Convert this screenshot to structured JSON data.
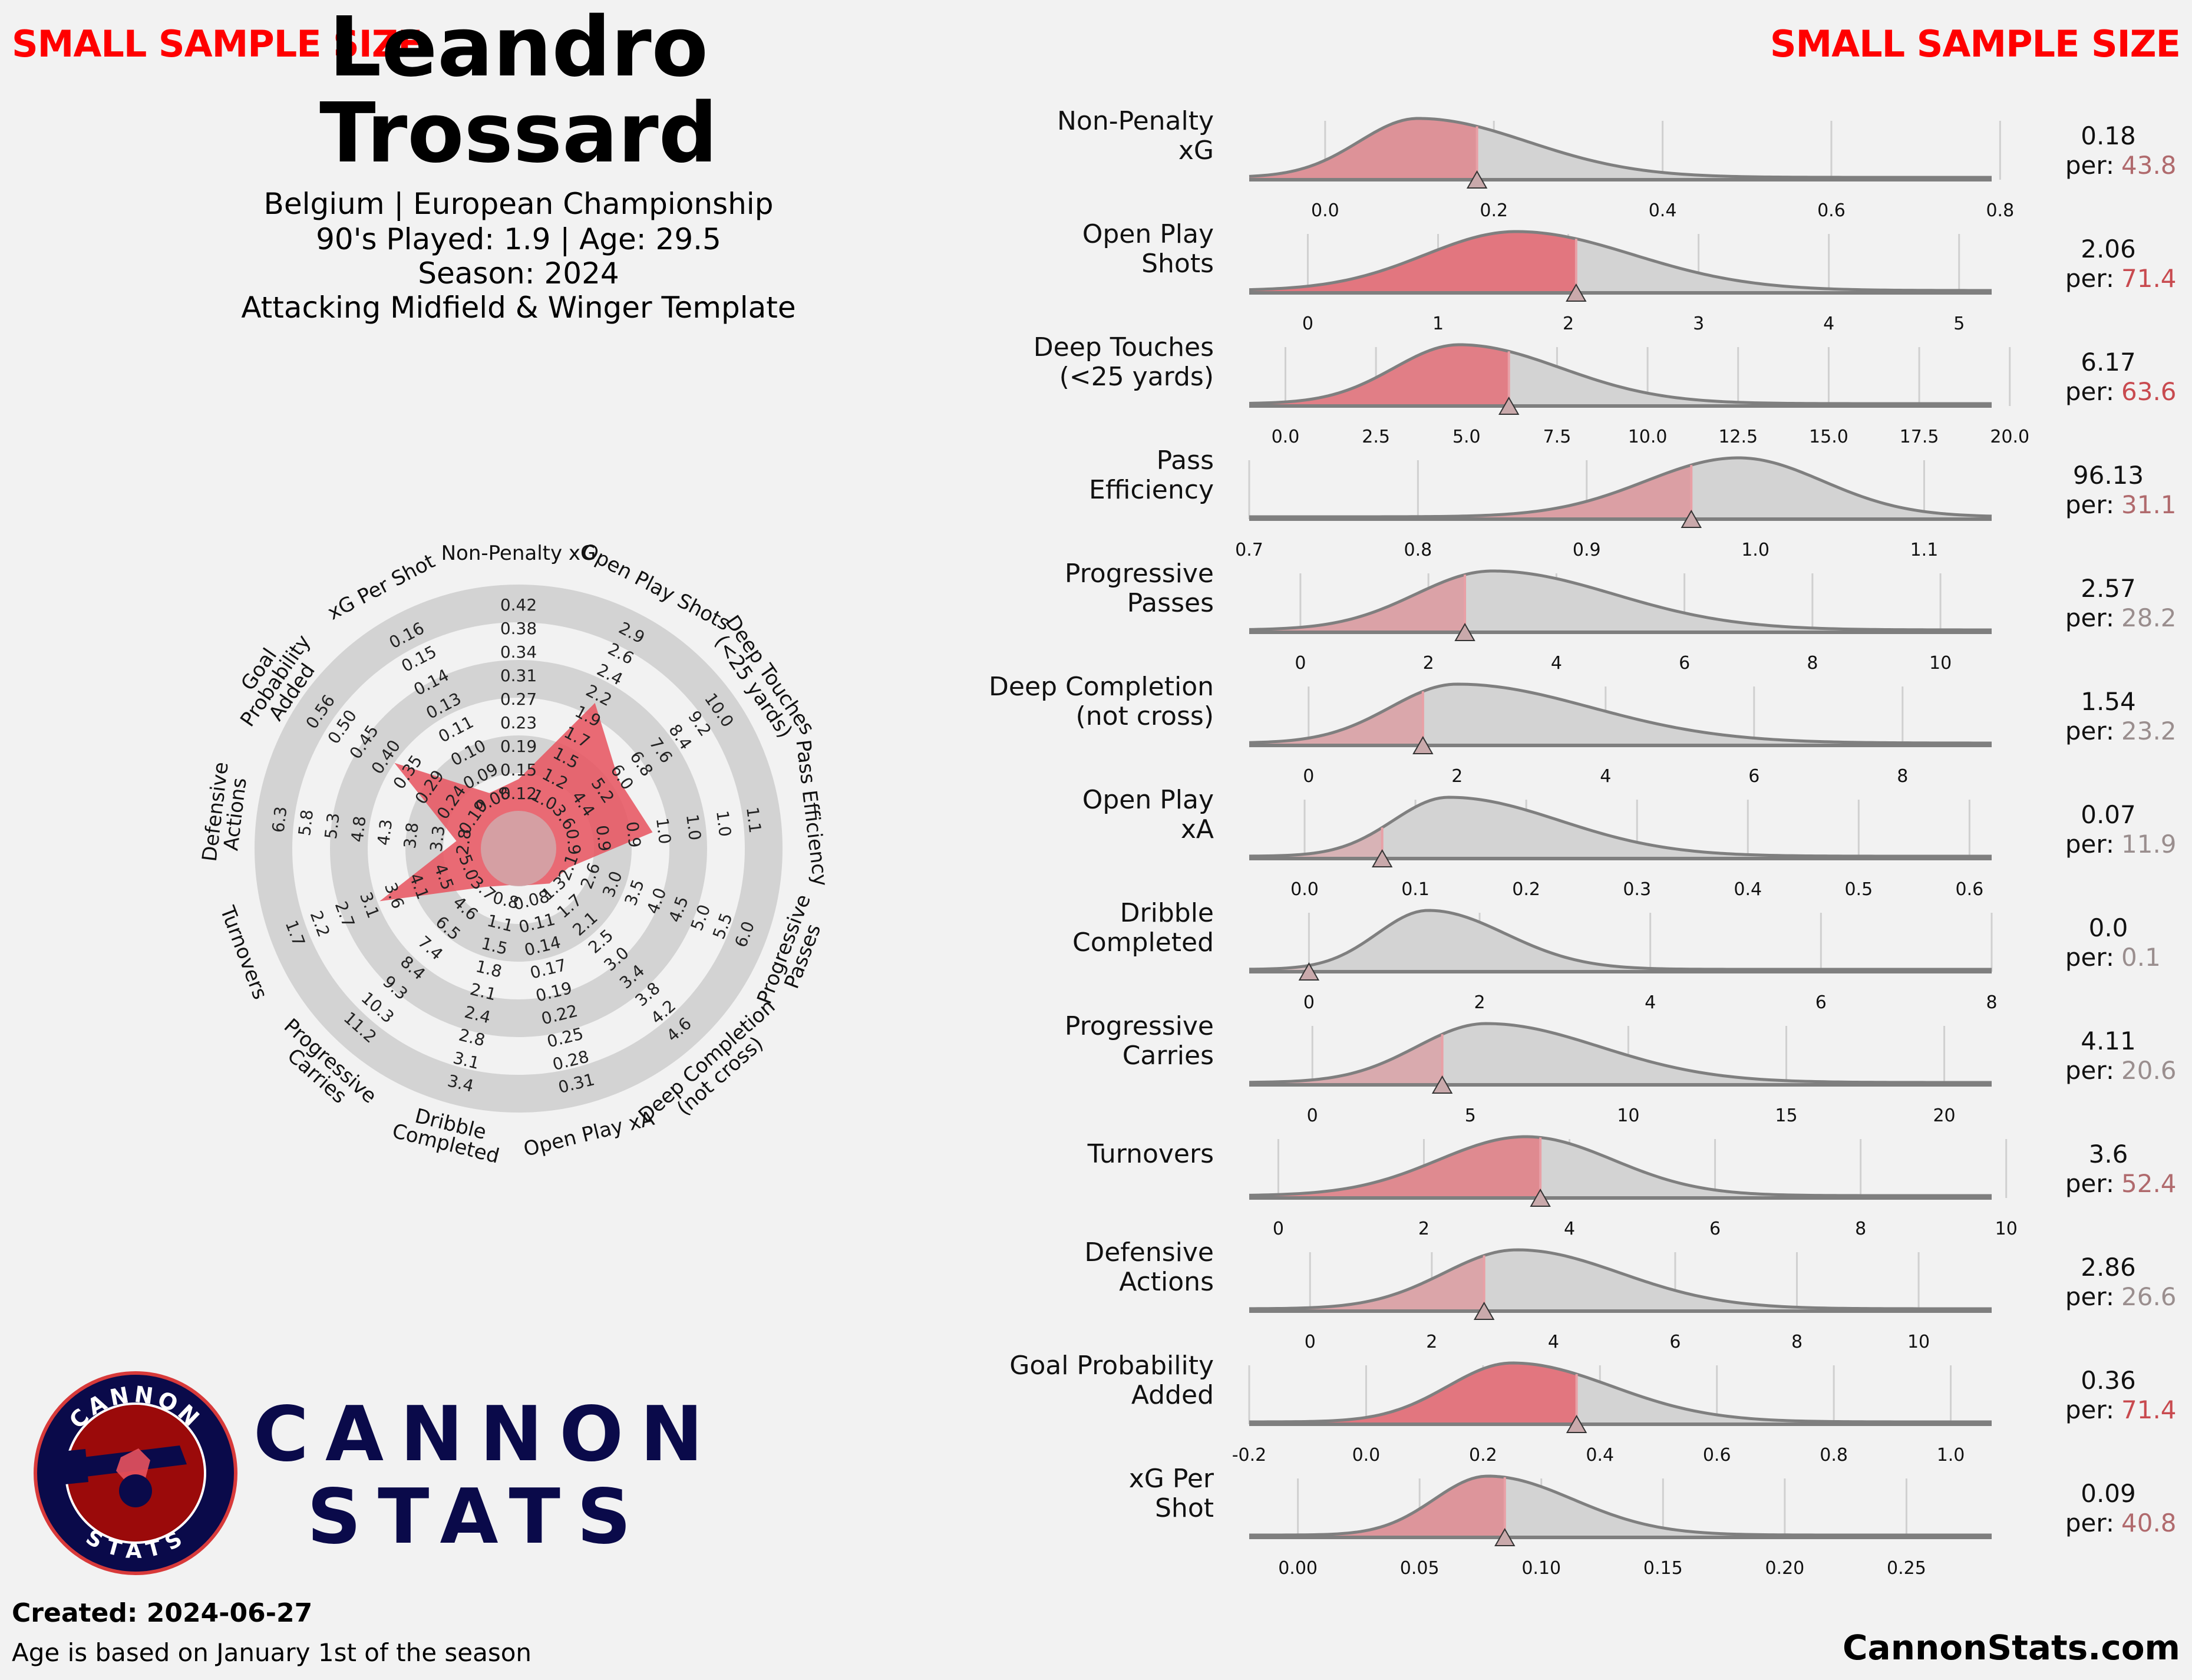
{
  "header": {
    "warning_left": "SMALL SAMPLE SIZE",
    "warning_right": "SMALL SAMPLE SIZE",
    "name_first": "Leandro",
    "name_last": "Trossard",
    "info_line1": "Belgium | European Championship",
    "info_line2": "90's Played: 1.9 | Age: 29.5",
    "info_line3": "Season: 2024",
    "info_line4": "Attacking Midfield & Winger Template"
  },
  "branding": {
    "line1": "CANNON",
    "line2": "STATS",
    "badge_top": "CANNON",
    "badge_bottom": "STATS"
  },
  "footer": {
    "created": "Created: 2024-06-27",
    "age_note": "Age is based on January 1st of the season",
    "site": "CannonStats.com"
  },
  "colors": {
    "accent": "#e8525e",
    "gray": "#d3d3d3",
    "line": "#7f7f7f",
    "brand": "#0a0a4a",
    "warning": "#ff0000"
  },
  "chart_data": [
    {
      "type": "radar",
      "ring_count": 6,
      "axes": [
        {
          "label": "Non-Penalty xG",
          "ticks": [
            "0.12",
            "0.15",
            "0.19",
            "0.23",
            "0.27",
            "0.31",
            "0.34",
            "0.38",
            "0.42"
          ],
          "value_fraction": 0.14
        },
        {
          "label": "Open Play Shots",
          "ticks": [
            "1.0",
            "1.2",
            "1.5",
            "1.7",
            "1.9",
            "2.2",
            "2.4",
            "2.6",
            "2.9"
          ],
          "value_fraction": 0.56
        },
        {
          "label": "Deep Touches\n(<25 yards)",
          "ticks": [
            "3.6",
            "4.4",
            "5.2",
            "6.0",
            "6.8",
            "7.6",
            "8.4",
            "9.2",
            "10.0"
          ],
          "value_fraction": 0.37
        },
        {
          "label": "Pass Efficiency",
          "ticks": [
            "0.9",
            "0.9",
            "0.9",
            "1.0",
            "1.0",
            "1.0",
            "1.1"
          ],
          "value_fraction": 0.43
        },
        {
          "label": "Progressive\nPasses",
          "ticks": [
            "2.1",
            "2.6",
            "3.0",
            "3.5",
            "4.0",
            "4.5",
            "5.0",
            "5.5",
            "6.0"
          ],
          "value_fraction": 0.07
        },
        {
          "label": "Deep Completion\n(not cross)",
          "ticks": [
            "1.3",
            "1.7",
            "2.1",
            "2.5",
            "3.0",
            "3.4",
            "3.8",
            "4.2",
            "4.6"
          ],
          "value_fraction": 0.04
        },
        {
          "label": "Open Play xA",
          "ticks": [
            "0.08",
            "0.11",
            "0.14",
            "0.17",
            "0.19",
            "0.22",
            "0.25",
            "0.28",
            "0.31"
          ],
          "value_fraction": 0.0
        },
        {
          "label": "Dribble\nCompleted",
          "ticks": [
            "0.8",
            "1.1",
            "1.5",
            "1.8",
            "2.1",
            "2.4",
            "2.8",
            "3.1",
            "3.4"
          ],
          "value_fraction": 0.0
        },
        {
          "label": "Progressive\nCarries",
          "ticks": [
            "3.7",
            "4.6",
            "6.5",
            "7.4",
            "8.4",
            "9.3",
            "10.3",
            "11.2"
          ],
          "value_fraction": 0.06
        },
        {
          "label": "Turnovers",
          "ticks": [
            "5.0",
            "4.5",
            "4.1",
            "3.6",
            "3.1",
            "2.7",
            "2.2",
            "1.7"
          ],
          "value_fraction": 0.49
        },
        {
          "label": "Defensive\nActions",
          "ticks": [
            "2.8",
            "3.3",
            "3.8",
            "4.3",
            "4.8",
            "5.3",
            "5.8",
            "6.3"
          ],
          "value_fraction": 0.11
        },
        {
          "label": "Goal\nProbability\nAdded",
          "ticks": [
            "0.19",
            "0.24",
            "0.29",
            "0.35",
            "0.40",
            "0.45",
            "0.50",
            "0.56"
          ],
          "value_fraction": 0.5
        },
        {
          "label": "xG Per Shot",
          "ticks": [
            "0.08",
            "0.09",
            "0.10",
            "0.11",
            "0.13",
            "0.14",
            "0.15",
            "0.16"
          ],
          "value_fraction": 0.11
        }
      ]
    },
    {
      "type": "distribution",
      "metrics": [
        {
          "label": "Non-Penalty\nxG",
          "value": "0.18",
          "per_prefix": "per:",
          "percentile": "43.8",
          "x": 0.18,
          "range": [
            -0.09,
            0.79
          ],
          "ticks": [
            "0.0",
            "0.2",
            "0.4",
            "0.6",
            "0.8"
          ],
          "tick_values": [
            0,
            0.2,
            0.4,
            0.6,
            0.8
          ],
          "peak": 0.11,
          "spread_l": 0.07,
          "spread_r": 0.13
        },
        {
          "label": "Open Play\nShots",
          "value": "2.06",
          "per_prefix": "per:",
          "percentile": "71.4",
          "x": 2.06,
          "range": [
            -0.45,
            5.25
          ],
          "ticks": [
            "0",
            "1",
            "2",
            "3",
            "4",
            "5"
          ],
          "tick_values": [
            0,
            1,
            2,
            3,
            4,
            5
          ],
          "peak": 1.6,
          "spread_l": 0.7,
          "spread_r": 0.9
        },
        {
          "label": "Deep Touches\n(<25 yards)",
          "value": "6.17",
          "per_prefix": "per:",
          "percentile": "63.6",
          "x": 6.17,
          "range": [
            -1.0,
            19.5
          ],
          "ticks": [
            "0.0",
            "2.5",
            "5.0",
            "7.5",
            "10.0",
            "12.5",
            "15.0",
            "17.5",
            "20.0"
          ],
          "tick_values": [
            0,
            2.5,
            5,
            7.5,
            10,
            12.5,
            15,
            17.5,
            20
          ],
          "peak": 4.8,
          "spread_l": 1.8,
          "spread_r": 2.8
        },
        {
          "label": "Pass\nEfficiency",
          "value": "96.13",
          "per_prefix": "per:",
          "percentile": "31.1",
          "x": 0.962,
          "range": [
            0.7,
            1.14
          ],
          "ticks": [
            "0.7",
            "0.8",
            "0.9",
            "1.0",
            "1.1"
          ],
          "tick_values": [
            0.7,
            0.8,
            0.9,
            1.0,
            1.1
          ],
          "peak": 0.99,
          "spread_l": 0.055,
          "spread_r": 0.05
        },
        {
          "label": "Progressive\nPasses",
          "value": "2.57",
          "per_prefix": "per:",
          "percentile": "28.2",
          "x": 2.57,
          "range": [
            -0.8,
            10.8
          ],
          "ticks": [
            "0",
            "2",
            "4",
            "6",
            "8",
            "10"
          ],
          "tick_values": [
            0,
            2,
            4,
            6,
            8,
            10
          ],
          "peak": 3.0,
          "spread_l": 1.2,
          "spread_r": 1.9
        },
        {
          "label": "Deep Completion\n(not cross)",
          "value": "1.54",
          "per_prefix": "per:",
          "percentile": "23.2",
          "x": 1.54,
          "range": [
            -0.8,
            9.2
          ],
          "ticks": [
            "0",
            "2",
            "4",
            "6",
            "8"
          ],
          "tick_values": [
            0,
            2,
            4,
            6,
            8
          ],
          "peak": 2.0,
          "spread_l": 0.9,
          "spread_r": 1.8
        },
        {
          "label": "Open Play\nxA",
          "value": "0.07",
          "per_prefix": "per:",
          "percentile": "11.9",
          "x": 0.07,
          "range": [
            -0.05,
            0.62
          ],
          "ticks": [
            "0.0",
            "0.1",
            "0.2",
            "0.3",
            "0.4",
            "0.5",
            "0.6"
          ],
          "tick_values": [
            0,
            0.1,
            0.2,
            0.3,
            0.4,
            0.5,
            0.6
          ],
          "peak": 0.13,
          "spread_l": 0.05,
          "spread_r": 0.1
        },
        {
          "label": "Dribble\nCompleted",
          "value": "0.0",
          "per_prefix": "per:",
          "percentile": "0.1",
          "x": 0.0,
          "range": [
            -0.7,
            8.0
          ],
          "ticks": [
            "0",
            "2",
            "4",
            "6",
            "8"
          ],
          "tick_values": [
            0,
            2,
            4,
            6,
            8
          ],
          "peak": 1.4,
          "spread_l": 0.6,
          "spread_r": 0.9
        },
        {
          "label": "Progressive\nCarries",
          "value": "4.11",
          "per_prefix": "per:",
          "percentile": "20.6",
          "x": 4.11,
          "range": [
            -2.0,
            21.5
          ],
          "ticks": [
            "0",
            "5",
            "10",
            "15",
            "20"
          ],
          "tick_values": [
            0,
            5,
            10,
            15,
            20
          ],
          "peak": 5.5,
          "spread_l": 2.2,
          "spread_r": 3.6
        },
        {
          "label": "Turnovers",
          "value": "3.6",
          "per_prefix": "per:",
          "percentile": "52.4",
          "x": 3.6,
          "range": [
            -0.4,
            9.8
          ],
          "ticks": [
            "0",
            "2",
            "4",
            "6",
            "8",
            "10"
          ],
          "tick_values": [
            0,
            2,
            4,
            6,
            8,
            10
          ],
          "peak": 3.4,
          "spread_l": 1.2,
          "spread_r": 1.2
        },
        {
          "label": "Defensive\nActions",
          "value": "2.86",
          "per_prefix": "per:",
          "percentile": "26.6",
          "x": 2.86,
          "range": [
            -1.0,
            11.2
          ],
          "ticks": [
            "0",
            "2",
            "4",
            "6",
            "8",
            "10"
          ],
          "tick_values": [
            0,
            2,
            4,
            6,
            8,
            10
          ],
          "peak": 3.4,
          "spread_l": 1.2,
          "spread_r": 1.7
        },
        {
          "label": "Goal Probability\nAdded",
          "value": "0.36",
          "per_prefix": "per:",
          "percentile": "71.4",
          "x": 0.36,
          "range": [
            -0.2,
            1.07
          ],
          "ticks": [
            "-0.2",
            "0.0",
            "0.2",
            "0.4",
            "0.6",
            "0.8",
            "1.0"
          ],
          "tick_values": [
            -0.2,
            0,
            0.2,
            0.4,
            0.6,
            0.8,
            1.0
          ],
          "peak": 0.25,
          "spread_l": 0.11,
          "spread_r": 0.17
        },
        {
          "label": "xG Per\nShot",
          "value": "0.09",
          "per_prefix": "per:",
          "percentile": "40.8",
          "x": 0.085,
          "range": [
            -0.02,
            0.285
          ],
          "ticks": [
            "0.00",
            "0.05",
            "0.10",
            "0.15",
            "0.20",
            "0.25"
          ],
          "tick_values": [
            0,
            0.05,
            0.1,
            0.15,
            0.2,
            0.25
          ],
          "peak": 0.078,
          "spread_l": 0.022,
          "spread_r": 0.035
        }
      ]
    }
  ]
}
